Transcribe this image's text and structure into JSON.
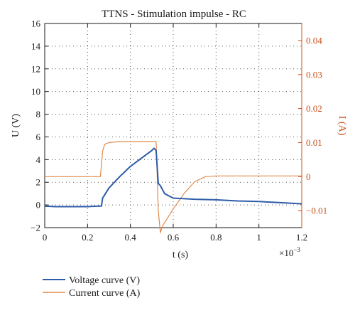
{
  "chart_data": {
    "type": "line",
    "title": "TTNS - Stimulation impulse - RC",
    "xlabel": "t (s)",
    "x_multiplier": "×10",
    "x_multiplier_exp": "−3",
    "ylabel_left": "U (V)",
    "ylabel_right": "I (A)",
    "xlim": [
      0,
      1.2
    ],
    "ylim_left": [
      -2,
      16
    ],
    "ylim_right": [
      -0.015,
      0.045
    ],
    "x_ticks": [
      "0",
      "0.2",
      "0.4",
      "0.6",
      "0.8",
      "1",
      "1.2"
    ],
    "y_left_ticks": [
      "−2",
      "0",
      "2",
      "4",
      "6",
      "8",
      "10",
      "12",
      "14",
      "16"
    ],
    "y_right_ticks": [
      "−0.01",
      "0",
      "0.01",
      "0.02",
      "0.03",
      "0.04"
    ],
    "grid": true,
    "legend_position": "bottom-left",
    "series": [
      {
        "name": "Voltage curve (V)",
        "axis": "left",
        "color": "#2e5ba8",
        "x": [
          0,
          0.05,
          0.1,
          0.15,
          0.2,
          0.25,
          0.265,
          0.27,
          0.28,
          0.3,
          0.35,
          0.4,
          0.45,
          0.5,
          0.51,
          0.52,
          0.53,
          0.54,
          0.56,
          0.6,
          0.7,
          0.8,
          0.9,
          1.0,
          1.1,
          1.2
        ],
        "y": [
          -0.1,
          -0.15,
          -0.15,
          -0.15,
          -0.15,
          -0.1,
          -0.1,
          0.6,
          0.9,
          1.5,
          2.5,
          3.4,
          4.1,
          4.8,
          5.0,
          4.8,
          1.9,
          1.7,
          1.0,
          0.6,
          0.5,
          0.45,
          0.35,
          0.3,
          0.2,
          0.1
        ]
      },
      {
        "name": "Current curve (A)",
        "axis": "right",
        "color": "#e08a4c",
        "x": [
          0,
          0.05,
          0.1,
          0.15,
          0.2,
          0.25,
          0.26,
          0.27,
          0.28,
          0.3,
          0.35,
          0.4,
          0.45,
          0.5,
          0.51,
          0.52,
          0.53,
          0.54,
          0.55,
          0.6,
          0.65,
          0.7,
          0.75,
          0.8,
          1.0,
          1.2
        ],
        "y": [
          0,
          0,
          0,
          0,
          0,
          0,
          0,
          0.0075,
          0.0095,
          0.01,
          0.0103,
          0.0103,
          0.0103,
          0.0103,
          0.0103,
          0.0103,
          -0.01,
          -0.0165,
          -0.0145,
          -0.0095,
          -0.005,
          -0.0015,
          0,
          0.0002,
          0.0002,
          0.0002
        ]
      }
    ]
  },
  "legend": [
    {
      "label": "Voltage curve (V)",
      "color": "#2e5ba8"
    },
    {
      "label": "Current curve (A)",
      "color": "#e08a4c"
    }
  ]
}
